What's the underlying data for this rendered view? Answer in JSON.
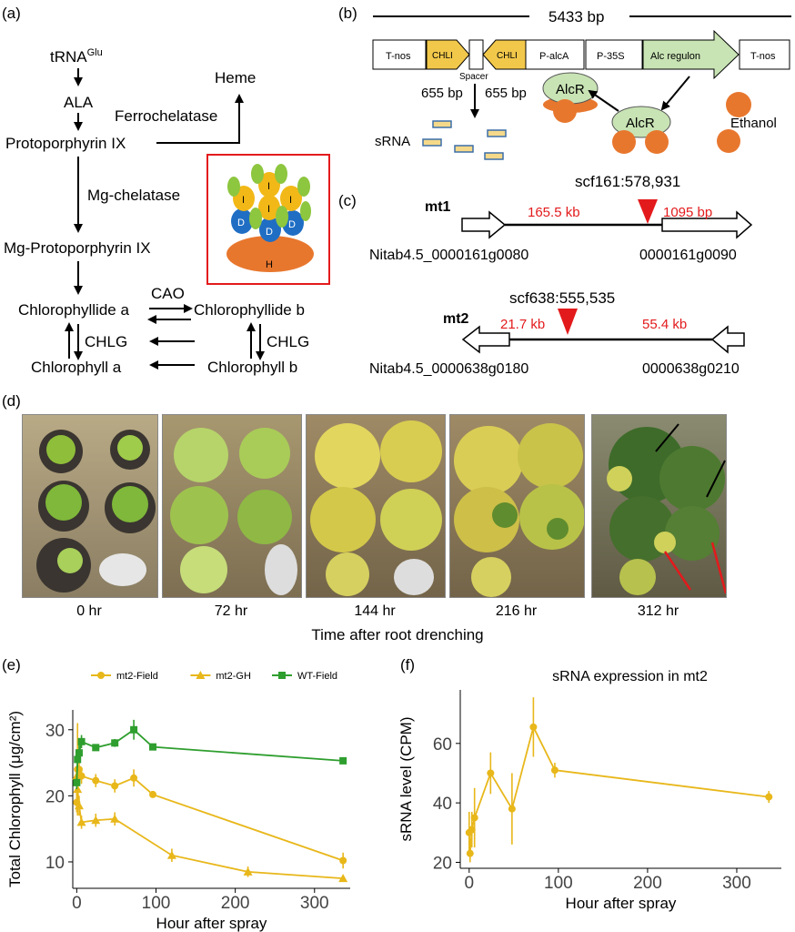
{
  "panels": {
    "a": "(a)",
    "b": "(b)",
    "c": "(c)",
    "d": "(d)",
    "e": "(e)",
    "f": "(f)"
  },
  "pathway": {
    "trna": "tRNA",
    "trna_sup": "Glu",
    "ala": "ALA",
    "proto": "Protoporphyrin IX",
    "heme": "Heme",
    "ferro": "Ferrochelatase",
    "mgchel": "Mg-chelatase",
    "mgproto": "Mg-Protoporphyrin IX",
    "chlide_a": "Chlorophyllide a",
    "chlide_b": "Chlorophyllide b",
    "cao": "CAO",
    "chlg1": "CHLG",
    "chlg2": "CHLG",
    "chl_a": "Chlorophyll a",
    "chl_b": "Chlorophyll b",
    "complex": {
      "subunit_i": "I",
      "subunit_d": "D",
      "subunit_h": "H"
    }
  },
  "construct": {
    "length": "5433 bp",
    "tnos1": "T-nos",
    "chli1": "CHLI",
    "spacer": "Spacer",
    "chli2": "CHLI",
    "palca": "P-alcA",
    "p35s": "P-35S",
    "alc": "Alc regulon",
    "tnos2": "T-nos",
    "bp1": "655 bp",
    "bp2": "655 bp",
    "alcr1": "AlcR",
    "alcr2": "AlcR",
    "ethanol": "Ethanol",
    "srna": "sRNA"
  },
  "mutants": {
    "mt1": {
      "name": "mt1",
      "site": "scf161:578,931",
      "left_dist": "165.5 kb",
      "right_dist": "1095 bp",
      "gene_left": "Nitab4.5_0000161g0080",
      "gene_right": "0000161g0090"
    },
    "mt2": {
      "name": "mt2",
      "site": "scf638:555,535",
      "left_dist": "21.7 kb",
      "right_dist": "55.4 kb",
      "gene_left": "Nitab4.5_0000638g0180",
      "gene_right": "0000638g0210"
    }
  },
  "photos": {
    "labels": [
      "0 hr",
      "72 hr",
      "144 hr",
      "216 hr",
      "312 hr"
    ],
    "axis_title": "Time after root drenching"
  },
  "chart_data": [
    {
      "type": "line",
      "title": "",
      "xlabel": "Hour after spray",
      "ylabel": "Total Chlorophyll (μg/cm²)",
      "xlim": [
        -5,
        345
      ],
      "ylim": [
        6,
        33
      ],
      "xticks": [
        0,
        100,
        200,
        300
      ],
      "yticks": [
        10,
        20,
        30
      ],
      "legend_position": "top",
      "grid": false,
      "series": [
        {
          "name": "mt2-Field",
          "color": "#E8B71A",
          "marker": "circle",
          "x": [
            0,
            1,
            3,
            6,
            24,
            48,
            72,
            96,
            336
          ],
          "y": [
            19,
            24,
            24,
            23,
            22.3,
            21.5,
            22.7,
            20.2,
            10.2
          ],
          "err": [
            1.5,
            7,
            1.5,
            1.2,
            1,
            1,
            1.3,
            0.5,
            1.2
          ]
        },
        {
          "name": "mt2-GH",
          "color": "#E8B71A",
          "marker": "triangle",
          "x": [
            0,
            1,
            3,
            6,
            24,
            48,
            120,
            216,
            336
          ],
          "y": [
            23,
            21,
            18.5,
            16,
            16.3,
            16.5,
            11,
            8.5,
            7.5
          ],
          "err": [
            1.5,
            1.5,
            1.5,
            1,
            1,
            1,
            1,
            0.8,
            0.5
          ]
        },
        {
          "name": "WT-Field",
          "color": "#2E9E2E",
          "marker": "square",
          "x": [
            0,
            1,
            3,
            6,
            24,
            48,
            72,
            96,
            336
          ],
          "y": [
            22,
            25.5,
            26.5,
            28.2,
            27.3,
            28,
            30,
            27.4,
            25.3
          ],
          "err": [
            1,
            1.2,
            1.5,
            1,
            0.5,
            0.6,
            1.5,
            0.4,
            0.4
          ]
        }
      ]
    },
    {
      "type": "line",
      "title": "sRNA expression in mt2",
      "xlabel": "Hour after spray",
      "ylabel": "sRNA level (CPM)",
      "xlim": [
        -10,
        350
      ],
      "ylim": [
        18,
        78
      ],
      "xticks": [
        0,
        100,
        200,
        300
      ],
      "yticks": [
        20,
        40,
        60
      ],
      "grid": false,
      "series": [
        {
          "name": "",
          "color": "#E8B71A",
          "marker": "circle",
          "x": [
            0,
            1,
            3,
            6,
            24,
            48,
            72,
            96,
            336
          ],
          "y": [
            30,
            23,
            31,
            35,
            50,
            38,
            65.5,
            51,
            42
          ],
          "err": [
            7,
            3,
            6,
            10,
            7,
            12,
            10,
            2.5,
            2
          ]
        }
      ]
    }
  ]
}
